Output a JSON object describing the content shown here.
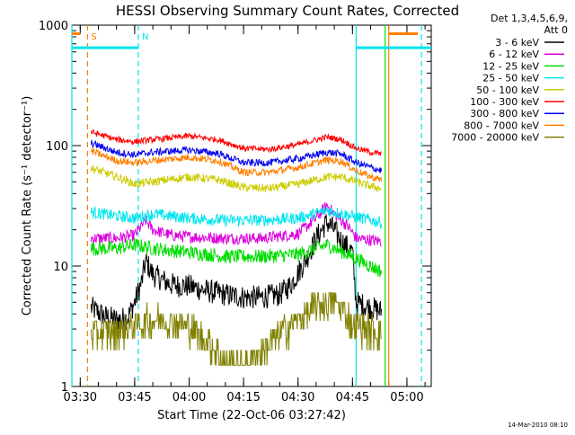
{
  "chart_data": {
    "type": "line",
    "title": "HESSI Observing Summary Count Rates, Corrected",
    "xlabel": "Start Time (22-Oct-06 03:27:42)",
    "ylabel": "Corrected Count Rate (s⁻¹ detector⁻¹)",
    "y_scale": "log",
    "ylim": [
      1,
      1000
    ],
    "xlim": [
      "03:27:42",
      "05:06:42"
    ],
    "x_ticks": [
      "03:30",
      "03:45",
      "04:00",
      "04:15",
      "04:30",
      "04:45",
      "05:00"
    ],
    "y_ticks": [
      "1",
      "10",
      "100",
      "1000"
    ],
    "legend_header": [
      "Det 1,3,4,5,6,9,",
      "Att 0"
    ],
    "legend_position": "right",
    "timestamp": "14-Mar-2010 08:10",
    "markers": [
      {
        "label": "S",
        "time": "03:32",
        "color": "#ff7f00",
        "style": "dashed"
      },
      {
        "label": "N",
        "time": "03:46",
        "color": "#00e5ee",
        "style": "dashed"
      }
    ],
    "vertical_lines": [
      {
        "time": "03:27:42",
        "color": "#00e5ee"
      },
      {
        "time": "04:46",
        "color": "#00e5ee"
      },
      {
        "time": "04:54",
        "color": "#00dd00"
      },
      {
        "time": "04:55",
        "color": "#ff7f00"
      },
      {
        "time": "05:04",
        "color": "#00e5ee",
        "style": "dashed"
      }
    ],
    "series": [
      {
        "name": "3 - 6 keV",
        "color": "#000000",
        "x": [
          "03:33",
          "03:37",
          "03:40",
          "03:43",
          "03:45",
          "03:47",
          "03:48",
          "03:50",
          "03:55",
          "04:00",
          "04:05",
          "04:10",
          "04:15",
          "04:20",
          "04:25",
          "04:28",
          "04:32",
          "04:35",
          "04:37",
          "04:38",
          "04:40",
          "04:42",
          "04:44",
          "04:45",
          "04:46",
          "04:50",
          "04:53"
        ],
        "y": [
          4.5,
          3.8,
          3.6,
          3.7,
          5,
          7.5,
          11,
          8.5,
          7,
          6.8,
          6.2,
          5.8,
          5.5,
          5.5,
          5.8,
          7,
          11,
          17,
          21,
          23,
          20,
          16,
          14,
          13,
          5,
          4.5,
          4.2
        ]
      },
      {
        "name": "6 - 12 keV",
        "color": "#dd00dd",
        "x": [
          "03:33",
          "03:40",
          "03:45",
          "03:48",
          "03:50",
          "03:55",
          "04:00",
          "04:10",
          "04:20",
          "04:30",
          "04:35",
          "04:38",
          "04:40",
          "04:44",
          "04:46",
          "04:53"
        ],
        "y": [
          17,
          17,
          18,
          24,
          20,
          18,
          17.5,
          17,
          17,
          18.5,
          25,
          32,
          27,
          21,
          17,
          16
        ]
      },
      {
        "name": "12 - 25 keV",
        "color": "#00dd00",
        "x": [
          "03:33",
          "03:40",
          "03:45",
          "03:50",
          "04:00",
          "04:10",
          "04:20",
          "04:30",
          "04:38",
          "04:45",
          "04:50",
          "04:53"
        ],
        "y": [
          14,
          14,
          15,
          14,
          13,
          12,
          12,
          12.5,
          15,
          12,
          10,
          9
        ]
      },
      {
        "name": "25 - 50 keV",
        "color": "#00e5ee",
        "x": [
          "03:33",
          "03:40",
          "03:45",
          "03:50",
          "04:00",
          "04:10",
          "04:20",
          "04:30",
          "04:38",
          "04:45",
          "04:50",
          "04:53"
        ],
        "y": [
          28,
          26,
          25,
          27,
          25,
          24,
          24,
          25,
          29,
          26,
          24,
          23
        ]
      },
      {
        "name": "50 - 100 keV",
        "color": "#cccc00",
        "x": [
          "03:33",
          "03:40",
          "03:45",
          "03:50",
          "04:00",
          "04:08",
          "04:15",
          "04:22",
          "04:30",
          "04:38",
          "04:42",
          "04:46",
          "04:50",
          "04:53"
        ],
        "y": [
          65,
          55,
          48,
          50,
          55,
          52,
          45,
          44,
          48,
          55,
          55,
          50,
          46,
          44
        ]
      },
      {
        "name": "100 - 300 keV",
        "color": "#ff0000",
        "x": [
          "03:33",
          "03:40",
          "03:45",
          "03:50",
          "04:00",
          "04:08",
          "04:15",
          "04:22",
          "04:30",
          "04:38",
          "04:42",
          "04:46",
          "04:50",
          "04:53"
        ],
        "y": [
          130,
          112,
          108,
          112,
          120,
          112,
          95,
          93,
          102,
          118,
          112,
          95,
          88,
          85
        ]
      },
      {
        "name": "300 - 800 keV",
        "color": "#0000ee",
        "x": [
          "03:33",
          "03:40",
          "03:45",
          "03:50",
          "04:00",
          "04:08",
          "04:15",
          "04:22",
          "04:30",
          "04:38",
          "04:42",
          "04:46",
          "04:50",
          "04:53"
        ],
        "y": [
          105,
          88,
          84,
          88,
          92,
          86,
          72,
          72,
          78,
          88,
          85,
          72,
          66,
          62
        ]
      },
      {
        "name": "800 - 7000 keV",
        "color": "#ff7f00",
        "x": [
          "03:33",
          "03:40",
          "03:45",
          "03:50",
          "04:00",
          "04:08",
          "04:15",
          "04:22",
          "04:30",
          "04:38",
          "04:42",
          "04:46",
          "04:50",
          "04:53"
        ],
        "y": [
          90,
          75,
          72,
          75,
          80,
          75,
          60,
          60,
          66,
          76,
          74,
          62,
          55,
          52
        ]
      },
      {
        "name": "7000 - 20000 keV",
        "color": "#808000",
        "x": [
          "03:33",
          "03:40",
          "03:45",
          "03:50",
          "03:55",
          "04:00",
          "04:05",
          "04:10",
          "04:15",
          "04:20",
          "04:25",
          "04:30",
          "04:35",
          "04:40",
          "04:45",
          "04:50",
          "04:53"
        ],
        "y": [
          2.8,
          2.9,
          3.3,
          3.6,
          3.6,
          3.2,
          2.4,
          1.6,
          1.5,
          2.0,
          2.8,
          3.6,
          4.8,
          5.2,
          3.4,
          3.0,
          2.8
        ]
      }
    ]
  }
}
